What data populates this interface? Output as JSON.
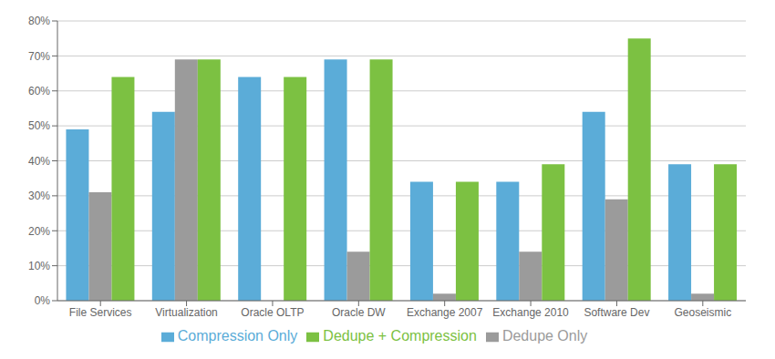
{
  "chart_data": {
    "type": "bar",
    "categories": [
      "File Services",
      "Virtualization",
      "Oracle OLTP",
      "Oracle DW",
      "Exchange 2007",
      "Exchange 2010",
      "Software Dev",
      "Geoseismic"
    ],
    "series": [
      {
        "name": "Compression Only",
        "color": "#5BACD8",
        "values": [
          49,
          54,
          64,
          69,
          34,
          34,
          54,
          39
        ]
      },
      {
        "name": "Dedupe Only",
        "color": "#9B9B9B",
        "values": [
          31,
          69,
          0,
          14,
          2,
          14,
          29,
          2
        ]
      },
      {
        "name": "Dedupe + Compression",
        "color": "#7CC142",
        "values": [
          64,
          69,
          64,
          69,
          34,
          39,
          75,
          39
        ]
      }
    ],
    "ylim": [
      0,
      80
    ],
    "yticks": [
      {
        "value": 0,
        "label": "0%"
      },
      {
        "value": 10,
        "label": "10%"
      },
      {
        "value": 20,
        "label": "20%"
      },
      {
        "value": 30,
        "label": "30%"
      },
      {
        "value": 40,
        "label": "40%"
      },
      {
        "value": 50,
        "label": "50%"
      },
      {
        "value": 60,
        "label": "60%"
      },
      {
        "value": 70,
        "label": "70%"
      },
      {
        "value": 80,
        "label": "80%"
      }
    ],
    "grid": true,
    "legend": "bottom"
  }
}
